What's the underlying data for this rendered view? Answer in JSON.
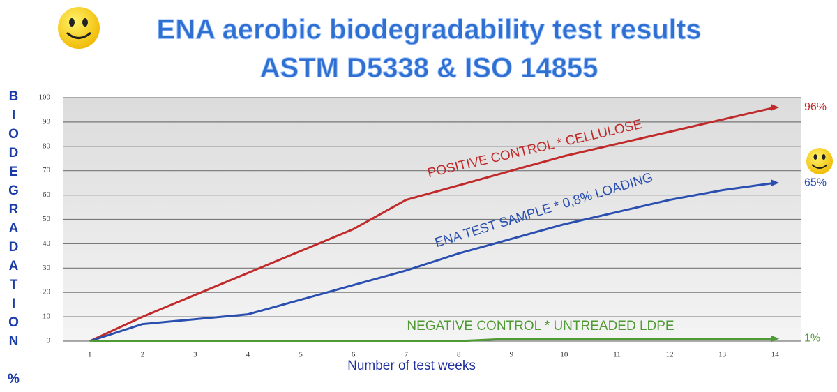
{
  "chart_data": {
    "type": "line",
    "title": "ENA aerobic biodegradability test results",
    "subtitle": "ASTM D5338 & ISO 14855",
    "y_label": "BIODEGRADATION %",
    "x_label": "Number of test weeks",
    "x": [
      1,
      2,
      3,
      4,
      5,
      6,
      7,
      8,
      9,
      10,
      11,
      12,
      13,
      14
    ],
    "xlim": [
      0.5,
      14.5
    ],
    "xticks": [
      1,
      2,
      3,
      4,
      5,
      6,
      7,
      8,
      9,
      10,
      11,
      12,
      13,
      14
    ],
    "ylim": [
      0,
      100
    ],
    "yticks": [
      0,
      10,
      20,
      30,
      40,
      50,
      60,
      70,
      80,
      90,
      100
    ],
    "grid": true,
    "series": [
      {
        "name": "POSITIVE CONTROL * CELLULOSE",
        "color": "#c02a2a",
        "values": [
          0,
          10,
          19,
          28,
          37,
          46,
          58,
          64,
          70,
          76,
          81,
          86,
          91,
          96
        ],
        "value_labels": [
          null,
          null,
          null,
          null,
          null,
          null,
          null,
          null,
          null,
          null,
          null,
          null,
          null,
          "96%"
        ]
      },
      {
        "name": "ENA TEST SAMPLE * 0,8% LOADING",
        "color": "#2a4fb0",
        "values": [
          0,
          7,
          9,
          11,
          17,
          23,
          29,
          36,
          42,
          48,
          53,
          58,
          62,
          65
        ],
        "value_labels": [
          null,
          null,
          null,
          null,
          null,
          null,
          null,
          null,
          null,
          null,
          null,
          null,
          null,
          "65%"
        ]
      },
      {
        "name": "NEGATIVE CONTROL * UNTREADED LDPE",
        "color": "#4f9a35",
        "values": [
          0,
          0,
          0,
          0,
          0,
          0,
          0,
          0,
          1,
          1,
          1,
          1,
          1,
          1
        ],
        "value_labels": [
          null,
          null,
          null,
          null,
          null,
          null,
          null,
          null,
          null,
          null,
          null,
          null,
          null,
          "1%"
        ]
      }
    ]
  }
}
